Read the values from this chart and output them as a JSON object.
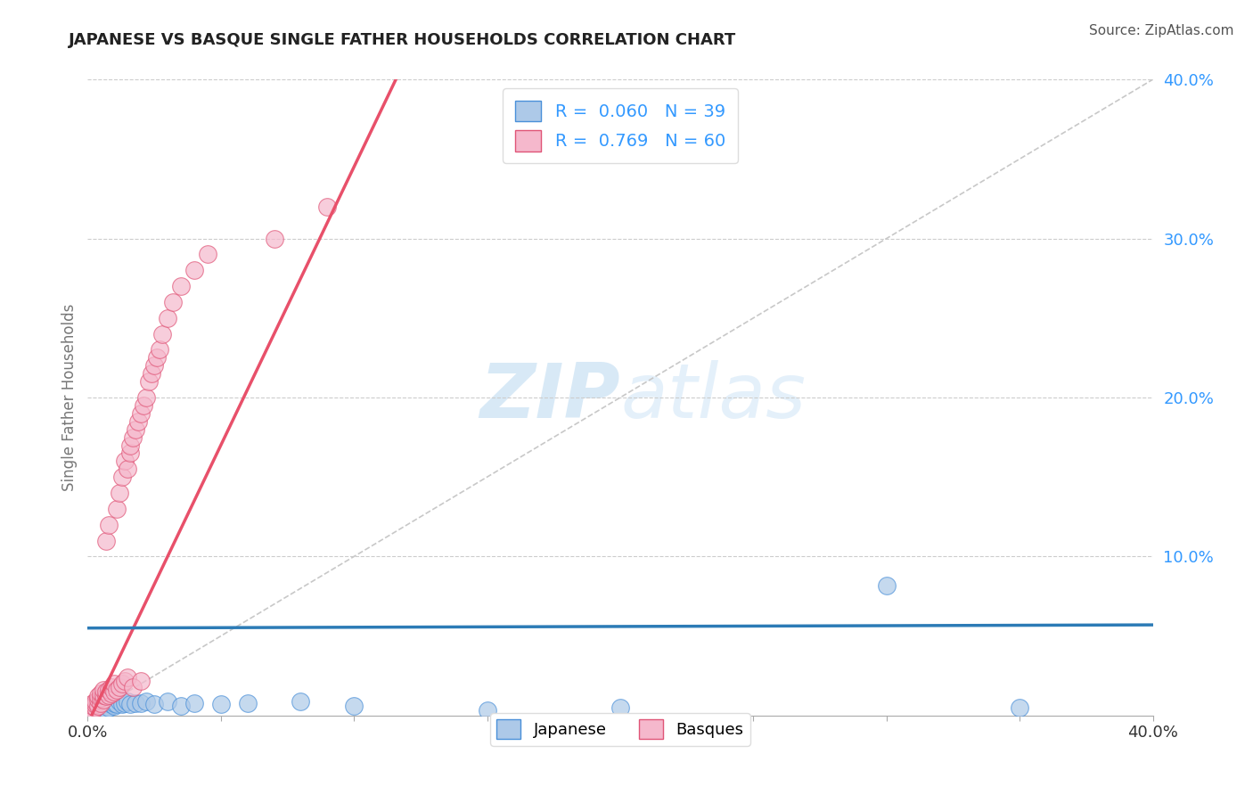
{
  "title": "JAPANESE VS BASQUE SINGLE FATHER HOUSEHOLDS CORRELATION CHART",
  "source": "Source: ZipAtlas.com",
  "ylabel": "Single Father Households",
  "xlim": [
    0.0,
    0.4
  ],
  "ylim": [
    0.0,
    0.4
  ],
  "watermark_zip": "ZIP",
  "watermark_atlas": "atlas",
  "legend_R_japanese": "0.060",
  "legend_N_japanese": "39",
  "legend_R_basque": "0.769",
  "legend_N_basque": "60",
  "japanese_fill": "#adc9e8",
  "basque_fill": "#f5b8cc",
  "japanese_edge": "#4a90d9",
  "basque_edge": "#e05577",
  "japanese_line_color": "#2c7bb6",
  "basque_line_color": "#e8506a",
  "diagonal_color": "#c8c8c8",
  "grid_color": "#cccccc",
  "title_color": "#222222",
  "axis_tick_color": "#3399ff",
  "japanese_scatter": [
    [
      0.002,
      0.005
    ],
    [
      0.003,
      0.003
    ],
    [
      0.003,
      0.008
    ],
    [
      0.004,
      0.002
    ],
    [
      0.004,
      0.006
    ],
    [
      0.005,
      0.004
    ],
    [
      0.005,
      0.007
    ],
    [
      0.005,
      0.002
    ],
    [
      0.006,
      0.005
    ],
    [
      0.006,
      0.003
    ],
    [
      0.007,
      0.006
    ],
    [
      0.007,
      0.004
    ],
    [
      0.008,
      0.008
    ],
    [
      0.008,
      0.005
    ],
    [
      0.009,
      0.007
    ],
    [
      0.009,
      0.009
    ],
    [
      0.01,
      0.006
    ],
    [
      0.01,
      0.008
    ],
    [
      0.011,
      0.007
    ],
    [
      0.012,
      0.009
    ],
    [
      0.013,
      0.007
    ],
    [
      0.014,
      0.008
    ],
    [
      0.015,
      0.009
    ],
    [
      0.016,
      0.007
    ],
    [
      0.018,
      0.008
    ],
    [
      0.02,
      0.008
    ],
    [
      0.022,
      0.009
    ],
    [
      0.025,
      0.007
    ],
    [
      0.03,
      0.009
    ],
    [
      0.035,
      0.006
    ],
    [
      0.04,
      0.008
    ],
    [
      0.05,
      0.007
    ],
    [
      0.06,
      0.008
    ],
    [
      0.08,
      0.009
    ],
    [
      0.1,
      0.006
    ],
    [
      0.15,
      0.003
    ],
    [
      0.2,
      0.005
    ],
    [
      0.3,
      0.082
    ],
    [
      0.35,
      0.005
    ]
  ],
  "basque_scatter": [
    [
      0.001,
      0.002
    ],
    [
      0.001,
      0.004
    ],
    [
      0.002,
      0.003
    ],
    [
      0.002,
      0.006
    ],
    [
      0.002,
      0.008
    ],
    [
      0.003,
      0.005
    ],
    [
      0.003,
      0.007
    ],
    [
      0.003,
      0.009
    ],
    [
      0.004,
      0.006
    ],
    [
      0.004,
      0.01
    ],
    [
      0.004,
      0.012
    ],
    [
      0.005,
      0.008
    ],
    [
      0.005,
      0.011
    ],
    [
      0.005,
      0.014
    ],
    [
      0.006,
      0.01
    ],
    [
      0.006,
      0.013
    ],
    [
      0.006,
      0.016
    ],
    [
      0.007,
      0.012
    ],
    [
      0.007,
      0.015
    ],
    [
      0.007,
      0.11
    ],
    [
      0.008,
      0.013
    ],
    [
      0.008,
      0.016
    ],
    [
      0.008,
      0.12
    ],
    [
      0.009,
      0.014
    ],
    [
      0.009,
      0.018
    ],
    [
      0.01,
      0.015
    ],
    [
      0.01,
      0.02
    ],
    [
      0.011,
      0.016
    ],
    [
      0.011,
      0.13
    ],
    [
      0.012,
      0.14
    ],
    [
      0.012,
      0.018
    ],
    [
      0.013,
      0.15
    ],
    [
      0.013,
      0.02
    ],
    [
      0.014,
      0.16
    ],
    [
      0.014,
      0.022
    ],
    [
      0.015,
      0.155
    ],
    [
      0.015,
      0.024
    ],
    [
      0.016,
      0.165
    ],
    [
      0.016,
      0.17
    ],
    [
      0.017,
      0.018
    ],
    [
      0.017,
      0.175
    ],
    [
      0.018,
      0.18
    ],
    [
      0.019,
      0.185
    ],
    [
      0.02,
      0.19
    ],
    [
      0.02,
      0.022
    ],
    [
      0.021,
      0.195
    ],
    [
      0.022,
      0.2
    ],
    [
      0.023,
      0.21
    ],
    [
      0.024,
      0.215
    ],
    [
      0.025,
      0.22
    ],
    [
      0.026,
      0.225
    ],
    [
      0.027,
      0.23
    ],
    [
      0.028,
      0.24
    ],
    [
      0.03,
      0.25
    ],
    [
      0.032,
      0.26
    ],
    [
      0.035,
      0.27
    ],
    [
      0.04,
      0.28
    ],
    [
      0.045,
      0.29
    ],
    [
      0.07,
      0.3
    ],
    [
      0.09,
      0.32
    ]
  ]
}
